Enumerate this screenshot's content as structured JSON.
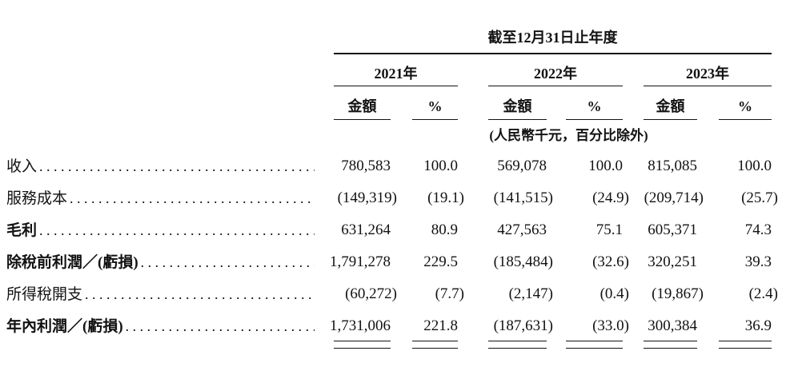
{
  "document": {
    "period_header": "截至12月31日止年度",
    "years": [
      "2021年",
      "2022年",
      "2023年"
    ],
    "sub_headers": {
      "amount": "金額",
      "percent": "%"
    },
    "unit_note": "(人民幣千元，百分比除外)",
    "rows": [
      {
        "label": "收入",
        "values": [
          "780,583",
          "100.0",
          "569,078",
          "100.0",
          "815,085",
          "100.0"
        ]
      },
      {
        "label": "服務成本",
        "values": [
          "(149,319)",
          "(19.1)",
          "(141,515)",
          "(24.9)",
          "(209,714)",
          "(25.7)"
        ]
      },
      {
        "label": "毛利",
        "values": [
          "631,264",
          "80.9",
          "427,563",
          "75.1",
          "605,371",
          "74.3"
        ]
      },
      {
        "label": "除稅前利潤／(虧損)",
        "values": [
          "1,791,278",
          "229.5",
          "(185,484)",
          "(32.6)",
          "320,251",
          "39.3"
        ]
      },
      {
        "label": "所得稅開支",
        "values": [
          "(60,272)",
          "(7.7)",
          "(2,147)",
          "(0.4)",
          "(19,867)",
          "(2.4)"
        ]
      },
      {
        "label": "年內利潤／(虧損)",
        "values": [
          "1,731,006",
          "221.8",
          "(187,631)",
          "(33.0)",
          "300,384",
          "36.9"
        ]
      }
    ],
    "colors": {
      "text": "#121212",
      "rule": "#121212",
      "background": "#ffffff"
    }
  }
}
